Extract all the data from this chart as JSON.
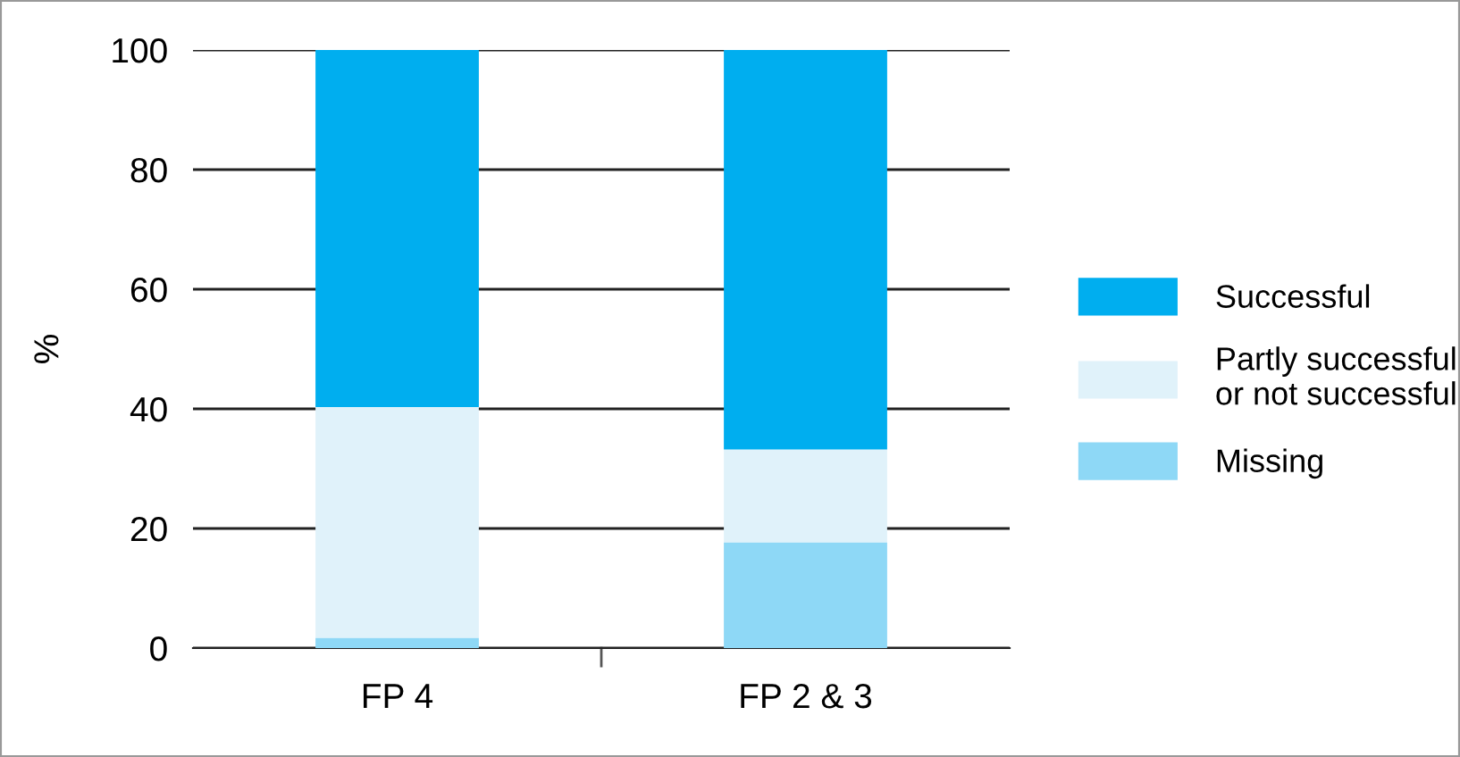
{
  "chart_data": {
    "type": "bar",
    "stacked": true,
    "ylabel": "%",
    "categories": [
      "FP 4",
      "FP 2 & 3"
    ],
    "series": [
      {
        "name": "Missing",
        "color": "#8ed8f6",
        "values": [
          1.7,
          17.7
        ]
      },
      {
        "name": "Partly successful\nor not successful",
        "color": "#e0f2fa",
        "values": [
          38.6,
          15.5
        ]
      },
      {
        "name": "Successful",
        "color": "#00aeef",
        "values": [
          59.7,
          66.8
        ]
      }
    ],
    "ylim": [
      0,
      100
    ],
    "yticks": [
      0,
      20,
      40,
      60,
      80,
      100
    ],
    "grid": "y",
    "legend": "right"
  }
}
